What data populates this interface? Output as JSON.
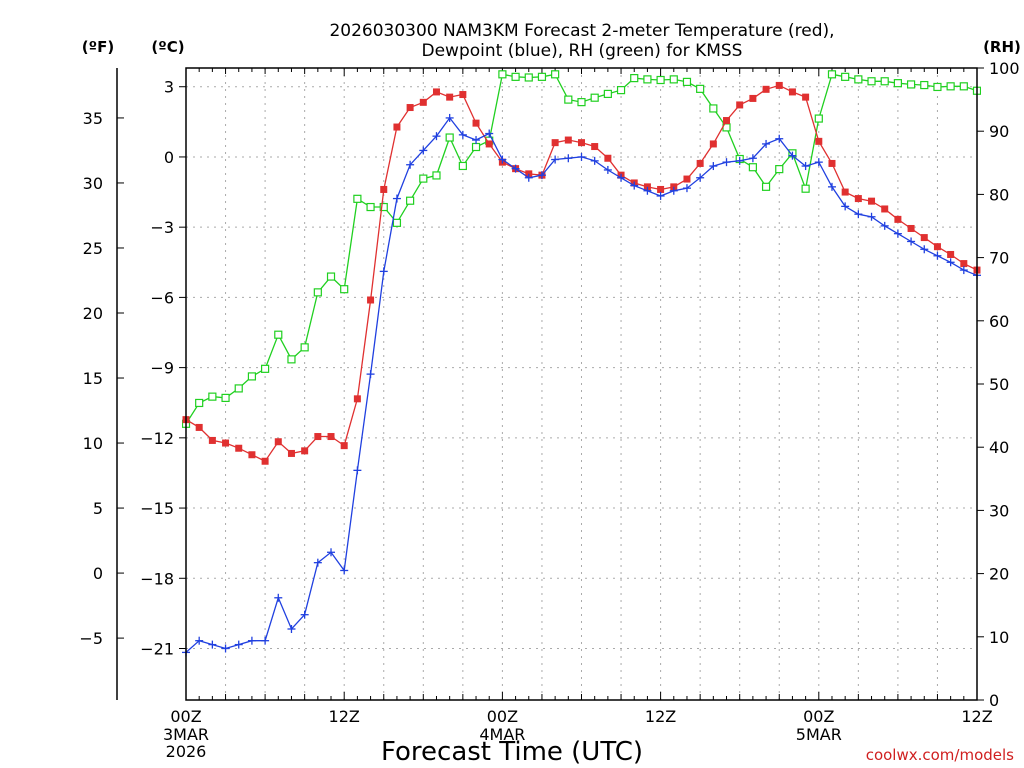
{
  "chart_data": {
    "type": "line",
    "title_line1": "2026030300 NAM3KM Forecast 2-meter Temperature (red),",
    "title_line2": "Dewpoint (blue), RH (green) for KMSS",
    "xlabel": "Forecast Time (UTC)",
    "credit": "coolwx.com/models",
    "unit_f": "(ºF)",
    "unit_c": "(ºC)",
    "unit_rh": "(RH)",
    "x_ticks": [
      {
        "label": "00Z",
        "sub1": "3MAR",
        "sub2": "2026",
        "hour": 0
      },
      {
        "label": "12Z",
        "sub1": "",
        "sub2": "",
        "hour": 12
      },
      {
        "label": "00Z",
        "sub1": "4MAR",
        "sub2": "",
        "hour": 24
      },
      {
        "label": "12Z",
        "sub1": "",
        "sub2": "",
        "hour": 36
      },
      {
        "label": "00Z",
        "sub1": "5MAR",
        "sub2": "",
        "hour": 48
      },
      {
        "label": "12Z",
        "sub1": "",
        "sub2": "",
        "hour": 60
      }
    ],
    "x_range_hours": [
      0,
      60
    ],
    "c_range": [
      -23.2,
      3.8
    ],
    "c_ticks": [
      "3",
      "0",
      "−3",
      "−6",
      "−9",
      "−12",
      "−15",
      "−18",
      "−21"
    ],
    "c_tick_values": [
      3,
      0,
      -3,
      -6,
      -9,
      -12,
      -15,
      -18,
      -21
    ],
    "f_ticks": [
      "35",
      "30",
      "25",
      "20",
      "15",
      "10",
      "5",
      "0",
      "−5"
    ],
    "f_tick_values": [
      35,
      30,
      25,
      20,
      15,
      10,
      5,
      0,
      -5
    ],
    "rh_range": [
      0,
      100
    ],
    "rh_ticks": [
      "0",
      "10",
      "20",
      "30",
      "40",
      "50",
      "60",
      "70",
      "80",
      "90",
      "100"
    ],
    "rh_tick_values": [
      0,
      10,
      20,
      30,
      40,
      50,
      60,
      70,
      80,
      90,
      100
    ],
    "series": [
      {
        "name": "Temperature",
        "color": "#e03030",
        "marker": "filled-square",
        "hours": [
          0,
          1,
          2,
          3,
          4,
          5,
          6,
          7,
          8,
          9,
          10,
          11,
          12,
          13,
          14,
          15,
          16,
          17,
          18,
          19,
          20,
          21,
          22,
          23,
          24,
          25,
          26,
          27,
          28,
          29,
          30,
          31,
          32,
          33,
          34,
          35,
          36,
          37,
          38,
          39,
          40,
          41,
          42,
          43,
          44,
          45,
          46,
          47,
          48,
          49,
          50,
          51,
          52,
          53,
          54,
          55,
          56,
          57,
          58,
          59,
          60
        ],
        "values_f": [
          11.8,
          11.2,
          10.2,
          10.0,
          9.6,
          9.1,
          8.6,
          10.1,
          9.2,
          9.4,
          10.5,
          10.5,
          9.8,
          13.4,
          21.0,
          29.5,
          34.3,
          35.8,
          36.2,
          37.0,
          36.6,
          36.8,
          34.6,
          33.0,
          31.6,
          31.1,
          30.7,
          30.6,
          33.1,
          33.3,
          33.1,
          32.8,
          31.9,
          30.6,
          30.0,
          29.7,
          29.5,
          29.7,
          30.3,
          31.5,
          33.0,
          34.8,
          36.0,
          36.5,
          37.2,
          37.5,
          37.0,
          36.6,
          33.2,
          31.5,
          29.3,
          28.8,
          28.6,
          28.0,
          27.2,
          26.5,
          25.8,
          25.1,
          24.5,
          23.8,
          23.3
        ]
      },
      {
        "name": "Dewpoint",
        "color": "#2040e0",
        "marker": "plus",
        "hours": [
          0,
          1,
          2,
          3,
          4,
          5,
          6,
          7,
          8,
          9,
          10,
          11,
          12,
          13,
          14,
          15,
          16,
          17,
          18,
          19,
          20,
          21,
          22,
          23,
          24,
          25,
          26,
          27,
          28,
          29,
          30,
          31,
          32,
          33,
          34,
          35,
          36,
          37,
          38,
          39,
          40,
          41,
          42,
          43,
          44,
          45,
          46,
          47,
          48,
          49,
          50,
          51,
          52,
          53,
          54,
          55,
          56,
          57,
          58,
          59,
          60
        ],
        "values_f": [
          -6.1,
          -5.2,
          -5.5,
          -5.8,
          -5.5,
          -5.2,
          -5.2,
          -1.9,
          -4.3,
          -3.2,
          0.8,
          1.6,
          0.2,
          7.9,
          15.3,
          23.2,
          28.8,
          31.4,
          32.5,
          33.6,
          35.0,
          33.7,
          33.3,
          33.8,
          31.8,
          31.1,
          30.4,
          30.6,
          31.8,
          31.9,
          32.0,
          31.7,
          31.0,
          30.4,
          29.8,
          29.4,
          29.0,
          29.4,
          29.6,
          30.4,
          31.3,
          31.6,
          31.7,
          31.9,
          33.0,
          33.4,
          32.1,
          31.3,
          31.6,
          29.7,
          28.2,
          27.6,
          27.4,
          26.7,
          26.1,
          25.5,
          24.9,
          24.4,
          23.9,
          23.3,
          22.9
        ]
      },
      {
        "name": "RH",
        "color": "#20d020",
        "marker": "open-square",
        "hours": [
          0,
          1,
          2,
          3,
          4,
          5,
          6,
          7,
          8,
          9,
          10,
          11,
          12,
          13,
          14,
          15,
          16,
          17,
          18,
          19,
          20,
          21,
          22,
          23,
          24,
          25,
          26,
          27,
          28,
          29,
          30,
          31,
          32,
          33,
          34,
          35,
          36,
          37,
          38,
          39,
          40,
          41,
          42,
          43,
          44,
          45,
          46,
          47,
          48,
          49,
          50,
          51,
          52,
          53,
          54,
          55,
          56,
          57,
          58,
          59,
          60
        ],
        "values_rh": [
          43.7,
          47.0,
          48.0,
          47.8,
          49.3,
          51.2,
          52.4,
          57.8,
          53.9,
          55.8,
          64.5,
          67.0,
          65.0,
          79.3,
          78.0,
          78.0,
          75.5,
          79.0,
          82.5,
          83.0,
          89.0,
          84.5,
          87.5,
          88.5,
          99.0,
          98.6,
          98.5,
          98.6,
          99.0,
          95.0,
          94.6,
          95.3,
          95.9,
          96.5,
          98.4,
          98.2,
          98.1,
          98.2,
          97.8,
          96.7,
          93.6,
          90.6,
          85.6,
          84.3,
          81.2,
          84.0,
          86.5,
          80.9,
          92.0,
          99.0,
          98.6,
          98.2,
          97.9,
          97.9,
          97.6,
          97.4,
          97.3,
          97.0,
          97.1,
          97.1,
          96.4
        ]
      }
    ]
  }
}
